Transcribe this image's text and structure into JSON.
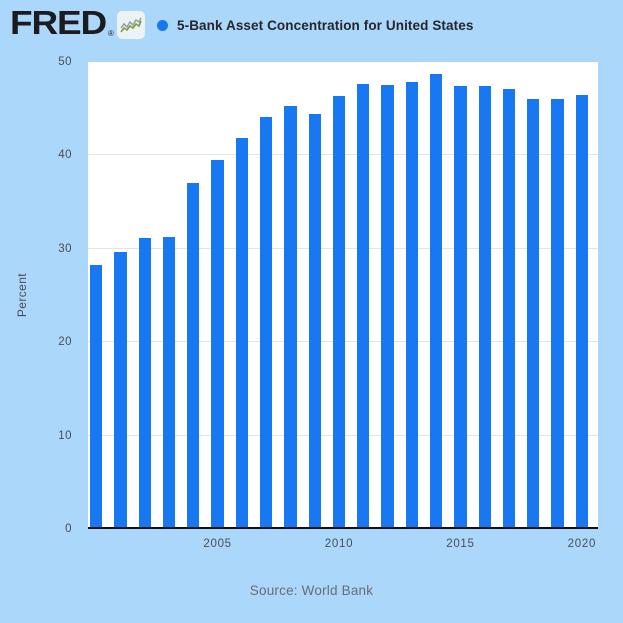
{
  "header": {
    "logo": {
      "text": "FRED",
      "registered_mark": "®"
    },
    "series": {
      "marker_color": "#1778f2",
      "label": "5-Bank Asset Concentration for United States"
    }
  },
  "chart_data": {
    "type": "bar",
    "title": "5-Bank Asset Concentration for United States",
    "ylabel": "Percent",
    "xlabel": "",
    "ylim": [
      0,
      50
    ],
    "yticks": [
      0,
      10,
      20,
      30,
      40,
      50
    ],
    "xticks": [
      2005,
      2010,
      2015,
      2020
    ],
    "grid": true,
    "legend_position": "top",
    "bar_color": "#1778f2",
    "categories": [
      2000,
      2001,
      2002,
      2003,
      2004,
      2005,
      2006,
      2007,
      2008,
      2009,
      2010,
      2011,
      2012,
      2013,
      2014,
      2015,
      2016,
      2017,
      2018,
      2019,
      2020
    ],
    "values": [
      28.2,
      29.6,
      31.0,
      31.2,
      36.9,
      39.4,
      41.8,
      44.0,
      45.2,
      44.3,
      46.3,
      47.5,
      47.4,
      47.7,
      48.6,
      47.3,
      47.3,
      47.0,
      45.9,
      45.9,
      46.4
    ]
  },
  "footer": {
    "source": "Source: World Bank"
  },
  "colors": {
    "background": "#abd7fb",
    "plot_background": "#ffffff",
    "bar": "#1778f2",
    "gridline": "#e4e4e4",
    "axis_line": "#101010",
    "tick_label": "#4b4d56",
    "title_text": "#26262c",
    "source_text": "#696d75",
    "logo_text": "#1b1b20"
  }
}
